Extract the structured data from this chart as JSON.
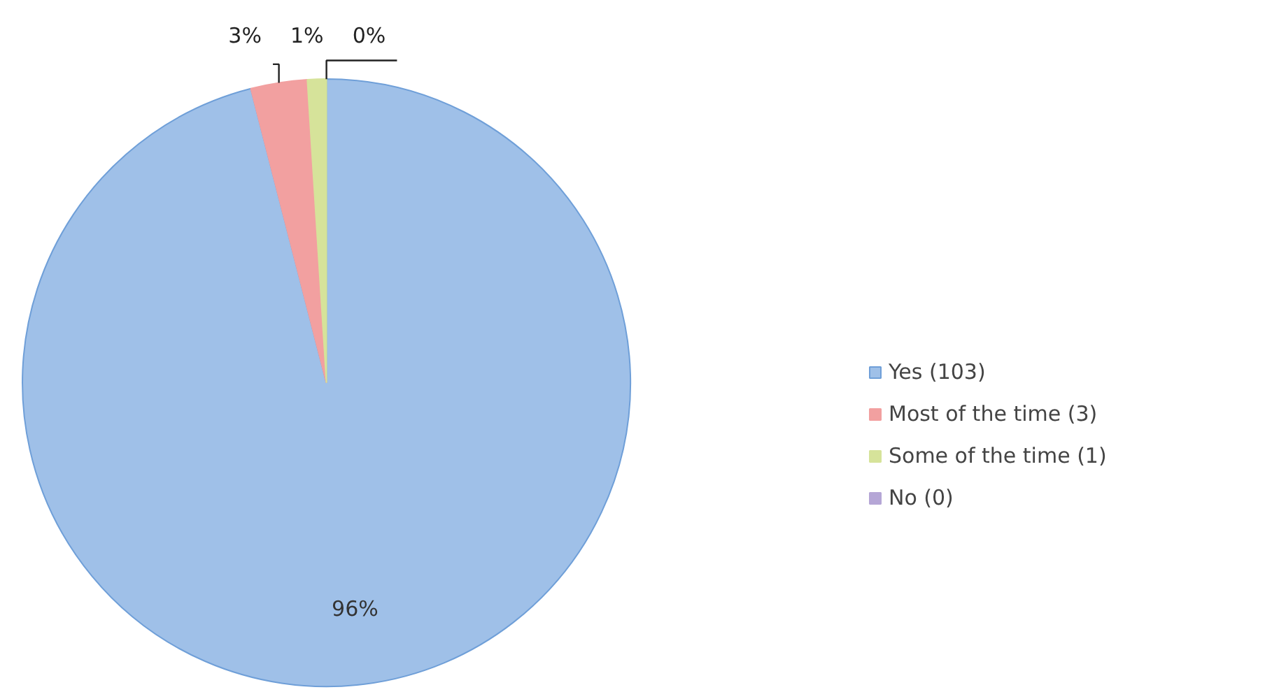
{
  "chart_data": {
    "type": "pie",
    "categories": [
      "Yes (103)",
      "Most of the time (3)",
      "Some of the time (1)",
      "No (0)"
    ],
    "values": [
      96,
      3,
      1,
      0
    ],
    "colors": [
      "#9fc0e8",
      "#f2a0a0",
      "#d6e39a",
      "#b5a6d6"
    ],
    "value_labels": [
      "96%",
      "3%",
      "1%",
      "0%"
    ],
    "legend": "right"
  }
}
